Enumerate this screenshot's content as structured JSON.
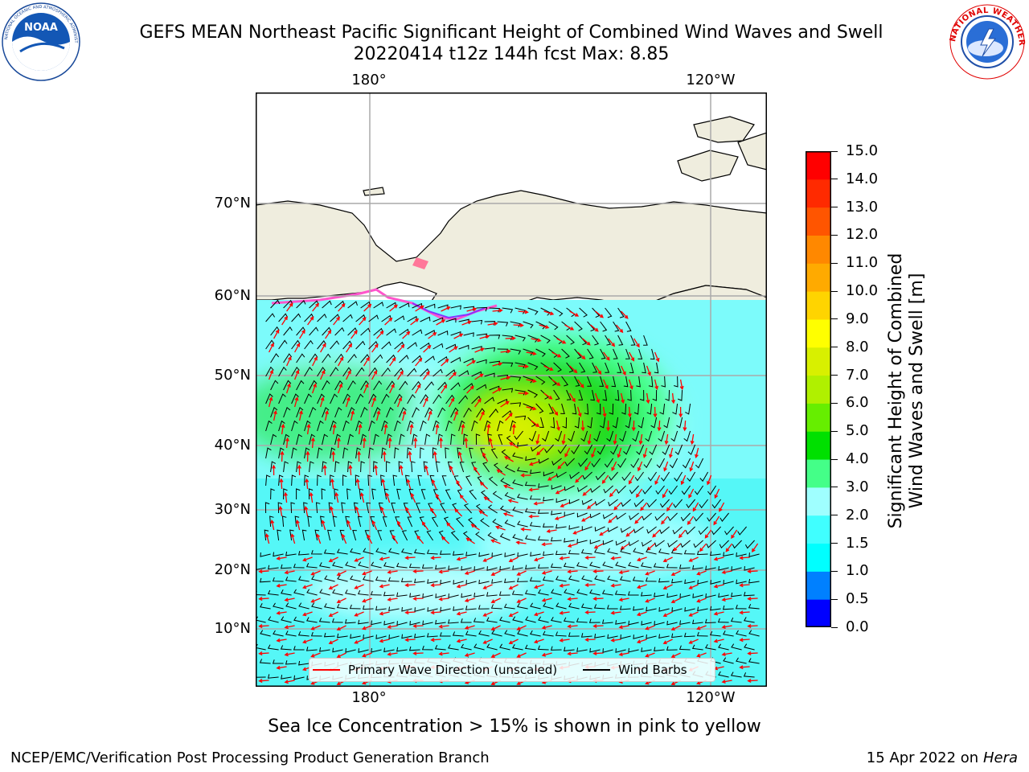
{
  "header": {
    "title_line1": "GEFS MEAN Northeast Pacific Significant Height of Combined Wind Waves and Swell",
    "title_line2": "20220414 t12z 144h fcst   Max: 8.85"
  },
  "logos": {
    "left": {
      "name": "NOAA",
      "ring_text": "NATIONAL OCEANIC AND ATMOSPHERIC ADMINISTRATION · U.S. DEPARTMENT OF COMMERCE"
    },
    "right": {
      "ring_text": "NATIONAL WEATHER SERVICE"
    }
  },
  "map": {
    "lon_labels_top": [
      "180°",
      "120°W"
    ],
    "lon_labels_bottom": [
      "180°",
      "120°W"
    ],
    "lat_labels": [
      "70°N",
      "60°N",
      "50°N",
      "40°N",
      "30°N",
      "20°N",
      "10°N"
    ],
    "land_color": "#efedde",
    "ocean_nodata": "#ffffff",
    "arrow_color": "#ff0000",
    "barb_color": "#000000"
  },
  "legend": {
    "wave_label": "Primary Wave Direction (unscaled)",
    "barb_label": "Wind Barbs"
  },
  "colorbar": {
    "label_line1": "Significant Height of Combined",
    "label_line2": "Wind Waves and Swell [m]",
    "ticks": [
      "15.0",
      "14.0",
      "13.0",
      "12.0",
      "11.0",
      "10.0",
      "9.0",
      "8.0",
      "7.0",
      "6.0",
      "5.0",
      "4.0",
      "3.0",
      "2.0",
      "1.5",
      "1.0",
      "0.5",
      "0.0"
    ],
    "colors": [
      "#0000ff",
      "#0080ff",
      "#00ffff",
      "#40ffff",
      "#9fffff",
      "#44ff88",
      "#00e000",
      "#66ee00",
      "#b0f000",
      "#d8f000",
      "#ffff00",
      "#ffd400",
      "#ffaa00",
      "#ff8800",
      "#ff5500",
      "#ff2a00",
      "#ff0000"
    ]
  },
  "footer": {
    "note": "Sea Ice Concentration > 15% is shown in pink to yellow",
    "left": "NCEP/EMC/Verification Post Processing Product Generation Branch",
    "date": "15 Apr 2022 on ",
    "machine": "Hera"
  }
}
